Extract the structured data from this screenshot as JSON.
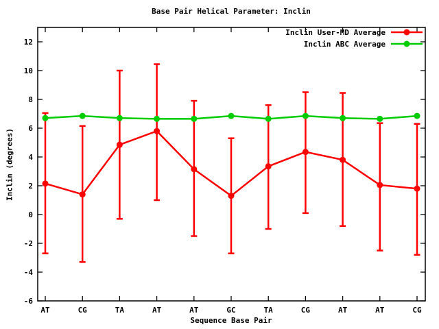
{
  "title": "Base Pair Helical Parameter: Inclin",
  "xlabel": "Sequence Base Pair",
  "ylabel": "Inclin (degrees)",
  "colors": {
    "user_md_series": "#ff0000",
    "abc_series": "#00cc00",
    "axis": "#000000",
    "background": "#ffffff"
  },
  "legend": {
    "position": "top-right-inside",
    "entries": [
      {
        "label": "Inclin User-MD Average",
        "color": "#ff0000"
      },
      {
        "label": "Inclin ABC Average",
        "color": "#00cc00"
      }
    ]
  },
  "chart_data": {
    "type": "line",
    "title": "Base Pair Helical Parameter: Inclin",
    "xlabel": "Sequence Base Pair",
    "ylabel": "Inclin (degrees)",
    "categories": [
      "AT",
      "CG",
      "TA",
      "AT",
      "AT",
      "GC",
      "TA",
      "CG",
      "AT",
      "AT",
      "CG"
    ],
    "series": [
      {
        "name": "Inclin User-MD Average",
        "color": "#ff0000",
        "marker": "filled-circle",
        "has_error_bars": true,
        "values": [
          2.15,
          1.4,
          4.85,
          5.8,
          3.15,
          1.3,
          3.35,
          4.35,
          3.8,
          2.05,
          1.8
        ],
        "error_low": [
          -2.7,
          -3.3,
          -0.3,
          1.0,
          -1.5,
          -2.7,
          -1.0,
          0.1,
          -0.8,
          -2.5,
          -2.8
        ],
        "error_high": [
          7.05,
          6.15,
          10.0,
          10.45,
          7.9,
          5.3,
          7.6,
          8.5,
          8.45,
          6.35,
          6.3
        ]
      },
      {
        "name": "Inclin ABC Average",
        "color": "#00cc00",
        "marker": "filled-circle",
        "has_error_bars": false,
        "values": [
          6.7,
          6.85,
          6.7,
          6.65,
          6.65,
          6.85,
          6.65,
          6.85,
          6.7,
          6.65,
          6.85
        ]
      }
    ],
    "ylim": [
      -6,
      13
    ],
    "yticks": [
      -6,
      -4,
      -2,
      0,
      2,
      4,
      6,
      8,
      10,
      12
    ],
    "grid": false,
    "legend_position": "top-right"
  }
}
